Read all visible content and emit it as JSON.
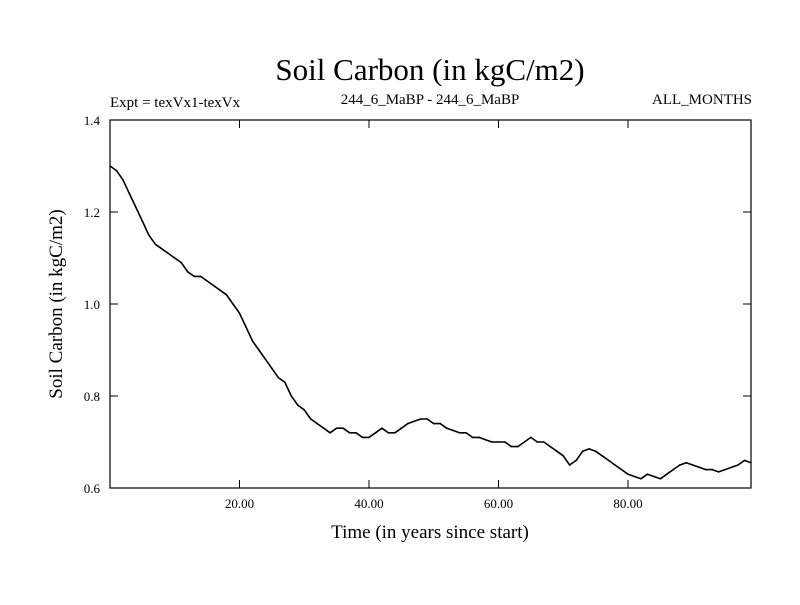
{
  "chart_data": {
    "type": "line",
    "title": "Soil Carbon (in kgC/m2)",
    "subtitle_left": "Expt = texVx1-texVx",
    "subtitle_center": "244_6_MaBP - 244_6_MaBP",
    "subtitle_right": "ALL_MONTHS",
    "xlabel": "Time (in years since start)",
    "ylabel": "Soil Carbon (in kgC/m2)",
    "xlim": [
      0,
      99
    ],
    "ylim": [
      0.6,
      1.4
    ],
    "x_ticks": [
      20,
      40,
      60,
      80
    ],
    "x_tick_labels": [
      "20.00",
      "40.00",
      "60.00",
      "80.00"
    ],
    "y_ticks": [
      0.6,
      0.8,
      1.0,
      1.2,
      1.4
    ],
    "y_tick_labels": [
      "0.6",
      "0.8",
      "1.0",
      "1.2",
      "1.4"
    ],
    "grid": false,
    "colors": {
      "line": "#000000",
      "axes": "#000000",
      "background": "#ffffff"
    },
    "series": [
      {
        "x": [
          0,
          1,
          2,
          3,
          4,
          5,
          6,
          7,
          8,
          9,
          10,
          11,
          12,
          13,
          14,
          15,
          16,
          17,
          18,
          19,
          20,
          21,
          22,
          23,
          24,
          25,
          26,
          27,
          28,
          29,
          30,
          31,
          32,
          33,
          34,
          35,
          36,
          37,
          38,
          39,
          40,
          41,
          42,
          43,
          44,
          45,
          46,
          47,
          48,
          49,
          50,
          51,
          52,
          53,
          54,
          55,
          56,
          57,
          58,
          59,
          60,
          61,
          62,
          63,
          64,
          65,
          66,
          67,
          68,
          69,
          70,
          71,
          72,
          73,
          74,
          75,
          76,
          77,
          78,
          79,
          80,
          81,
          82,
          83,
          84,
          85,
          86,
          87,
          88,
          89,
          90,
          91,
          92,
          93,
          94,
          95,
          96,
          97,
          98,
          99
        ],
        "values": [
          1.3,
          1.29,
          1.27,
          1.24,
          1.21,
          1.18,
          1.15,
          1.13,
          1.12,
          1.11,
          1.1,
          1.09,
          1.07,
          1.06,
          1.06,
          1.05,
          1.04,
          1.03,
          1.02,
          1.0,
          0.98,
          0.95,
          0.92,
          0.9,
          0.88,
          0.86,
          0.84,
          0.83,
          0.8,
          0.78,
          0.77,
          0.75,
          0.74,
          0.73,
          0.72,
          0.73,
          0.73,
          0.72,
          0.72,
          0.71,
          0.71,
          0.72,
          0.73,
          0.72,
          0.72,
          0.73,
          0.74,
          0.745,
          0.75,
          0.75,
          0.74,
          0.74,
          0.73,
          0.725,
          0.72,
          0.72,
          0.71,
          0.71,
          0.705,
          0.7,
          0.7,
          0.7,
          0.69,
          0.69,
          0.7,
          0.71,
          0.7,
          0.7,
          0.69,
          0.68,
          0.67,
          0.65,
          0.66,
          0.68,
          0.685,
          0.68,
          0.67,
          0.66,
          0.65,
          0.64,
          0.63,
          0.625,
          0.62,
          0.63,
          0.625,
          0.62,
          0.63,
          0.64,
          0.65,
          0.655,
          0.65,
          0.645,
          0.64,
          0.64,
          0.635,
          0.64,
          0.645,
          0.65,
          0.66,
          0.655
        ]
      }
    ]
  }
}
